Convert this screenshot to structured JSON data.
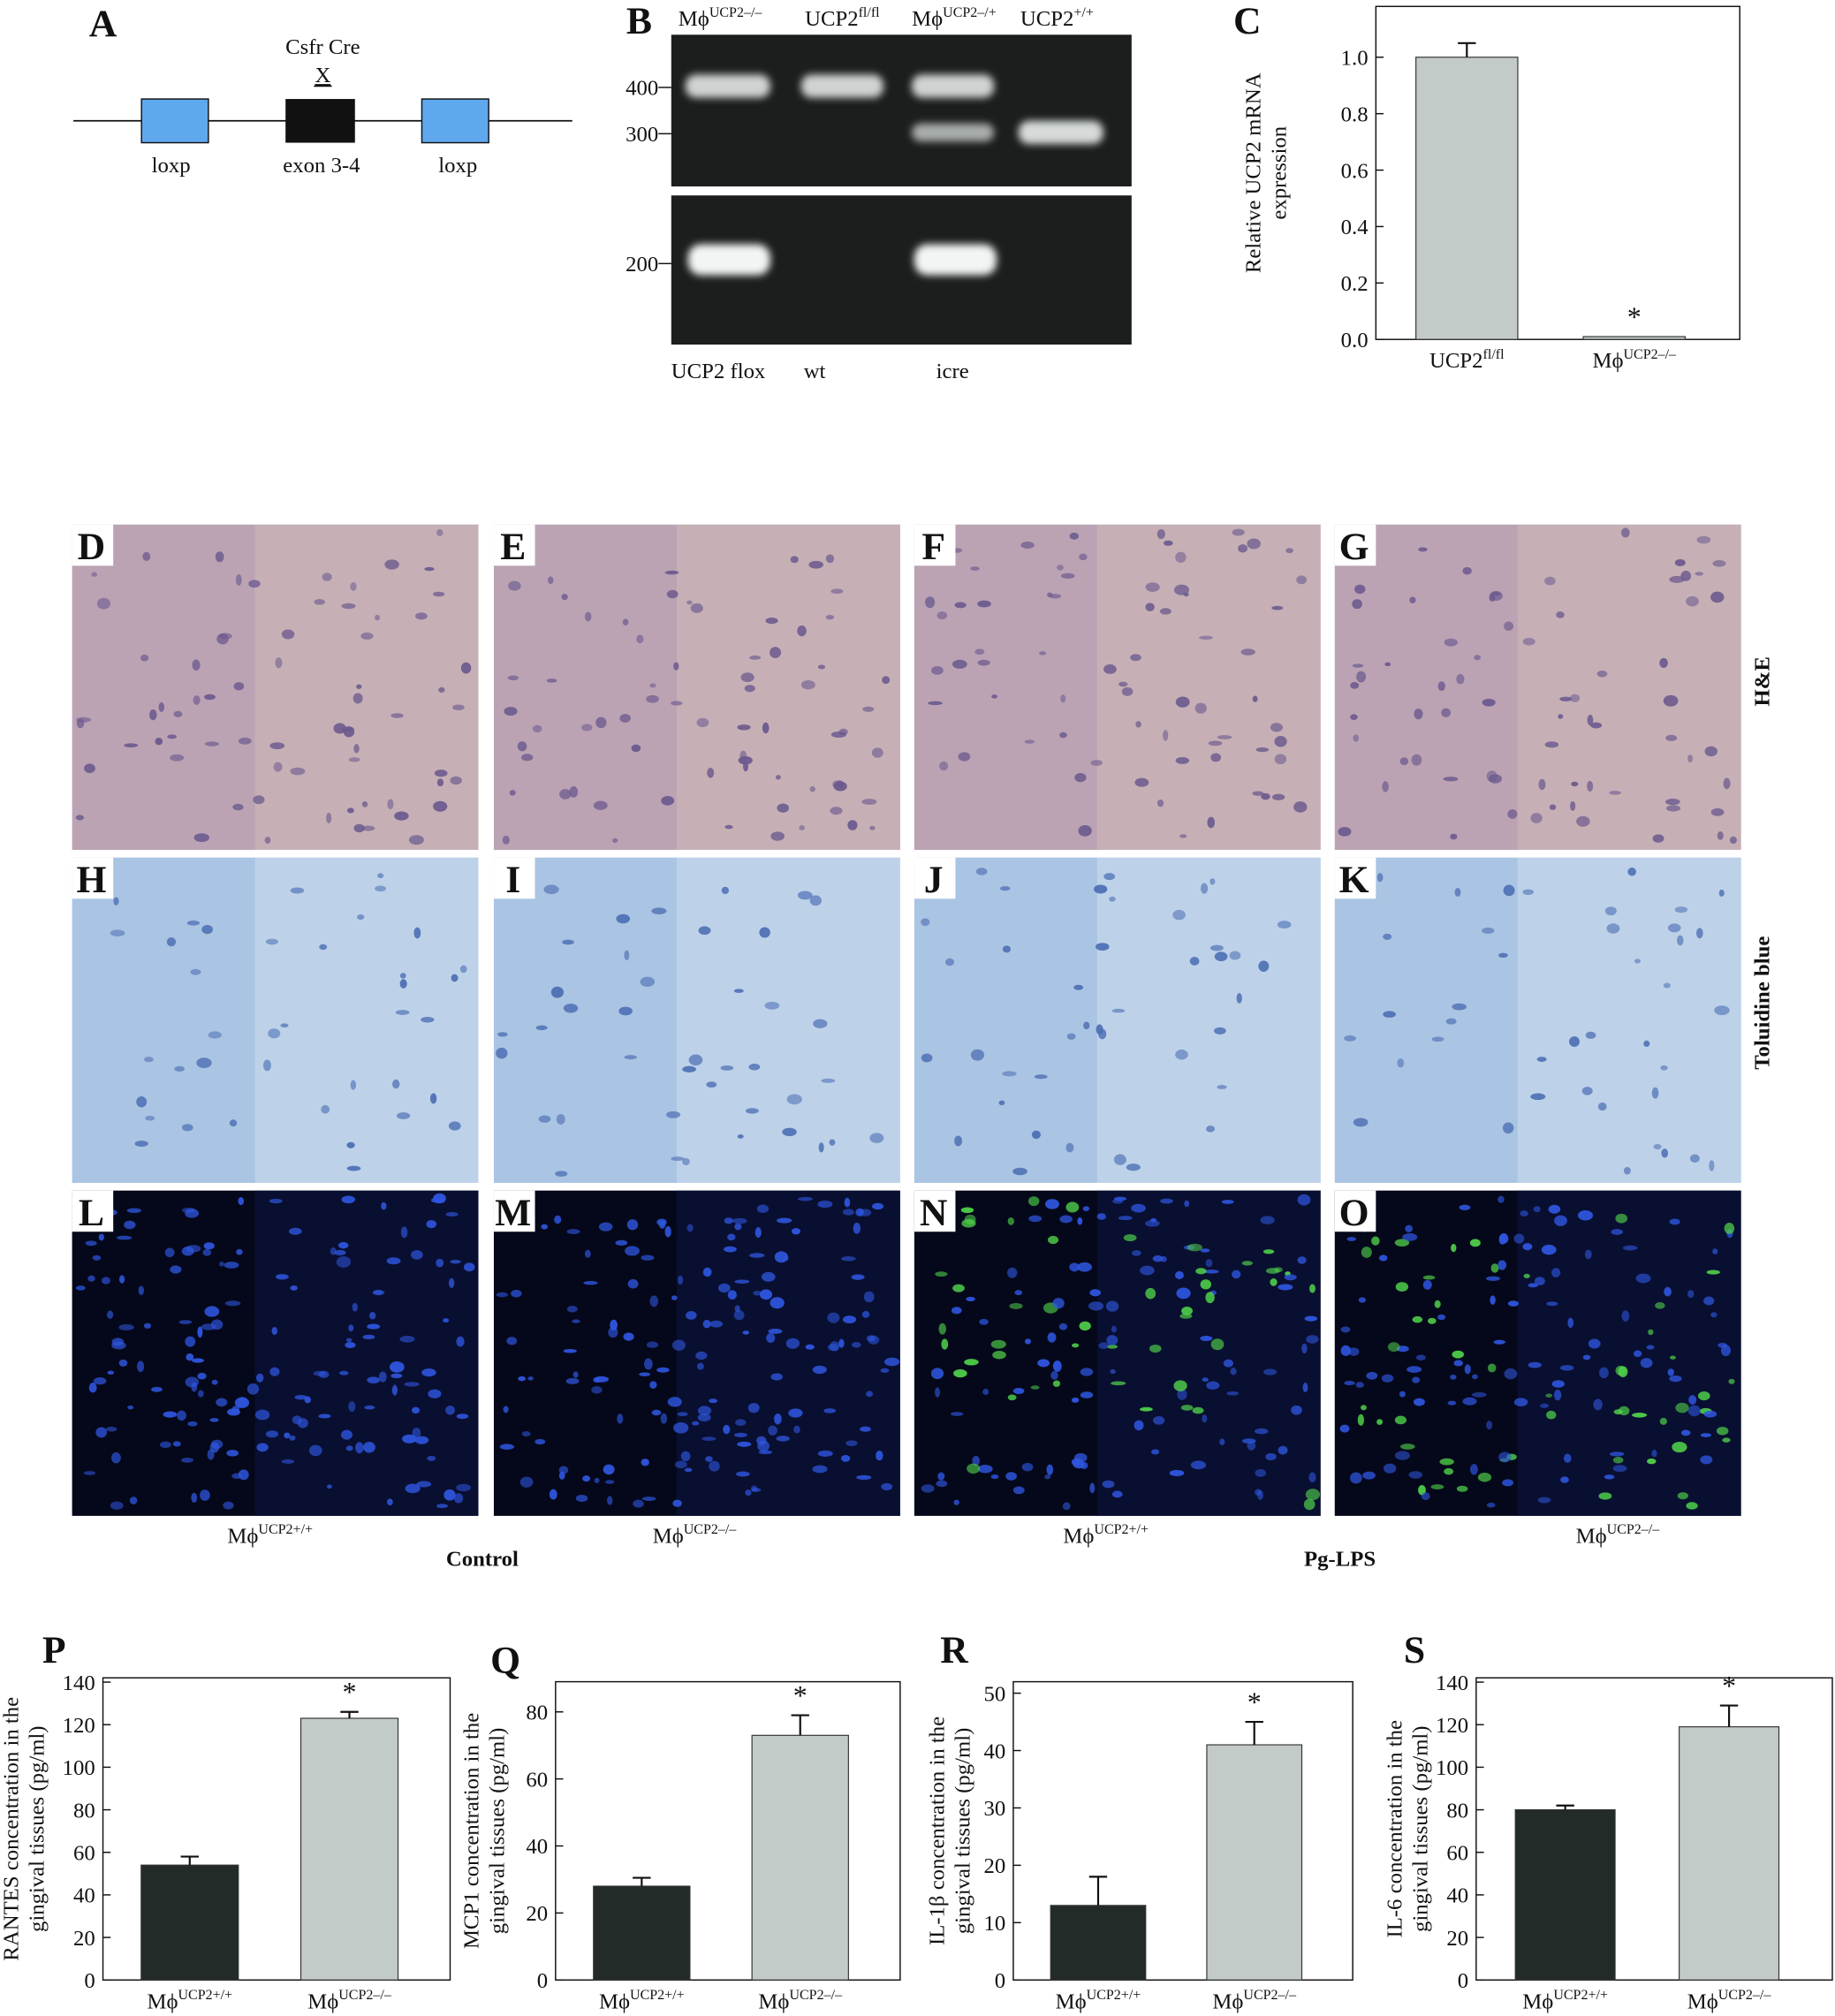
{
  "figure": {
    "panel_labels": [
      "A",
      "B",
      "C",
      "D",
      "E",
      "F",
      "G",
      "H",
      "I",
      "J",
      "K",
      "L",
      "M",
      "N",
      "O",
      "P",
      "Q",
      "R",
      "S"
    ],
    "diagram": {
      "top_label": "Csfr Cre",
      "cross": "X",
      "elements": [
        "loxp",
        "exon 3-4",
        "loxp"
      ]
    },
    "gel": {
      "lanes": [
        {
          "text": "Mϕ",
          "sup": "UCP2–/–"
        },
        {
          "text": "UCP2",
          "sup": "fl/fl"
        },
        {
          "text": "Mϕ",
          "sup": "UCP2–/+"
        },
        {
          "text": "UCP2",
          "sup": "+/+"
        }
      ],
      "size_markers": [
        "400",
        "300",
        "200"
      ],
      "bottom_labels": [
        "UCP2 flox",
        "wt",
        "icre"
      ]
    },
    "row_labels": [
      "H&E",
      "Toluidine blue"
    ],
    "column_labels": [
      {
        "text": "Mϕ",
        "sup": "UCP2+/+"
      },
      {
        "text": "Mϕ",
        "sup": "UCP2–/–"
      },
      {
        "text": "Mϕ",
        "sup": "UCP2+/+"
      },
      {
        "text": "Mϕ",
        "sup": "UCP2–/–"
      }
    ],
    "group_labels": [
      "Control",
      "Pg-LPS"
    ]
  },
  "chart_data": [
    {
      "type": "bar",
      "ylabel": [
        "Relative UCP2 mRNA",
        "expression"
      ],
      "categories": [
        "UCP2",
        "Mϕ"
      ],
      "category_superscripts": [
        "fl/fl",
        "UCP2–/–"
      ],
      "values": [
        1.0,
        0.01
      ],
      "errors": [
        0.05,
        null
      ],
      "annotations": [
        null,
        "*"
      ],
      "colors": [
        "#c3cbc8",
        "#c3cbc8"
      ],
      "ylim": [
        0,
        1.18
      ],
      "yticks": [
        {
          "value": 0,
          "label": "0.0"
        },
        {
          "value": 0.2,
          "label": "0.2"
        },
        {
          "value": 0.4,
          "label": "0.4"
        },
        {
          "value": 0.6,
          "label": "0.6"
        },
        {
          "value": 0.8,
          "label": "0.8"
        },
        {
          "value": 1,
          "label": "1.0"
        }
      ]
    },
    {
      "type": "bar",
      "ylabel": [
        "RANTES concentration in the",
        "gingival tissues (pg/ml)"
      ],
      "categories": [
        "Mϕ",
        "Mϕ"
      ],
      "category_superscripts": [
        "UCP2+/+",
        "UCP2–/–"
      ],
      "values": [
        54,
        123
      ],
      "errors": [
        4,
        3
      ],
      "annotations": [
        null,
        "*"
      ],
      "colors": [
        "#232b29",
        "#c3cbc8"
      ],
      "ylim": [
        0,
        142
      ],
      "yticks": [
        0,
        20,
        40,
        60,
        80,
        100,
        120,
        140
      ]
    },
    {
      "type": "bar",
      "ylabel": [
        "MCP1 concentration in the",
        "gingival tissues (pg/ml)"
      ],
      "categories": [
        "Mϕ",
        "Mϕ"
      ],
      "category_superscripts": [
        "UCP2+/+",
        "UCP2–/–"
      ],
      "values": [
        28,
        73
      ],
      "errors": [
        2.5,
        6
      ],
      "annotations": [
        null,
        "*"
      ],
      "colors": [
        "#232b29",
        "#c3cbc8"
      ],
      "ylim": [
        0,
        89
      ],
      "yticks": [
        0,
        20,
        40,
        60,
        80
      ]
    },
    {
      "type": "bar",
      "ylabel": [
        "IL-1β concentration in the",
        "gingival tissues (pg/ml)"
      ],
      "categories": [
        "Mϕ",
        "Mϕ"
      ],
      "category_superscripts": [
        "UCP2+/+",
        "UCP2–/–"
      ],
      "values": [
        13,
        41
      ],
      "errors": [
        5,
        4
      ],
      "annotations": [
        null,
        "*"
      ],
      "colors": [
        "#232b29",
        "#c3cbc8"
      ],
      "ylim": [
        0,
        52
      ],
      "yticks": [
        0,
        10,
        20,
        30,
        40,
        50
      ]
    },
    {
      "type": "bar",
      "ylabel": [
        "IL-6 concentration in the",
        "gingival tissues (pg/ml)"
      ],
      "categories": [
        "Mϕ",
        "Mϕ"
      ],
      "category_superscripts": [
        "UCP2+/+",
        "UCP2–/–"
      ],
      "values": [
        80,
        119
      ],
      "errors": [
        2,
        10
      ],
      "annotations": [
        null,
        "*"
      ],
      "colors": [
        "#232b29",
        "#c3cbc8"
      ],
      "ylim": [
        0,
        142
      ],
      "yticks": [
        0,
        20,
        40,
        60,
        80,
        100,
        120,
        140
      ]
    }
  ]
}
